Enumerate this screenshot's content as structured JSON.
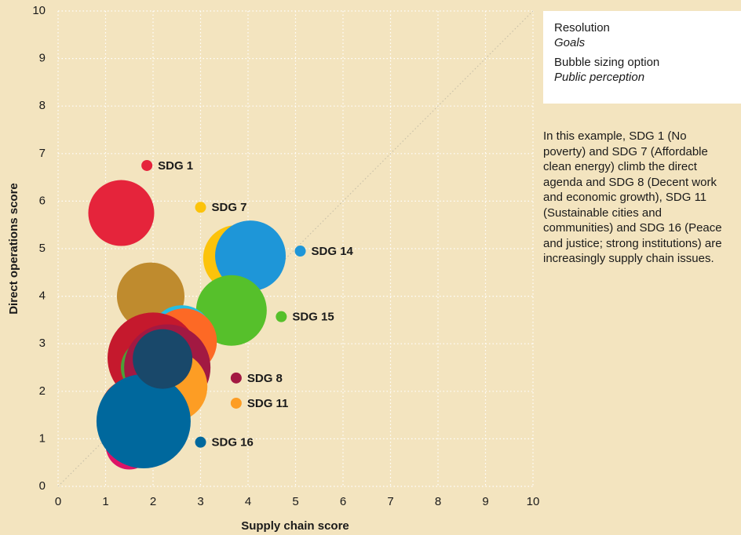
{
  "chart_data": {
    "type": "bubble",
    "xlabel": "Supply chain score",
    "ylabel": "Direct operations score",
    "xlim": [
      0,
      10
    ],
    "ylim": [
      0,
      10
    ],
    "xticks": [
      0,
      1,
      2,
      3,
      4,
      5,
      6,
      7,
      8,
      9,
      10
    ],
    "yticks": [
      0,
      1,
      2,
      3,
      4,
      5,
      6,
      7,
      8,
      9,
      10
    ],
    "grid": true,
    "diagonal": true,
    "bubbles": {
      "x": [
        1.33,
        3.75,
        4.05,
        3.65,
        1.95,
        2.6,
        2.65,
        2.0,
        1.9,
        2.3,
        2.4,
        1.55,
        1.5,
        1.8,
        2.2
      ],
      "y": [
        5.75,
        4.8,
        4.85,
        3.7,
        4.0,
        3.15,
        3.05,
        2.7,
        2.5,
        2.5,
        2.1,
        1.6,
        0.85,
        1.37,
        2.68
      ],
      "sizes": [
        42,
        42,
        45,
        45,
        43,
        40,
        42,
        58,
        35,
        55,
        45,
        40,
        30,
        60,
        38
      ],
      "colors": [
        "#e5243b",
        "#fcc30b",
        "#1e96d8",
        "#56c02b",
        "#bf8b2e",
        "#26bde2",
        "#fd6925",
        "#c5192d",
        "#4c9f38",
        "#a21942",
        "#fd9d24",
        "#ff3a21",
        "#dd1367",
        "#00689d",
        "#19486a"
      ]
    },
    "markers": {
      "x": [
        1.87,
        3.0,
        5.1,
        4.7,
        3.75,
        3.75,
        3.0
      ],
      "y": [
        6.75,
        5.87,
        4.95,
        3.57,
        2.28,
        1.75,
        0.93
      ],
      "labels": [
        "SDG 1",
        "SDG 7",
        "SDG 14",
        "SDG 15",
        "SDG 8",
        "SDG 11",
        "SDG 16"
      ],
      "colors": [
        "#e5243b",
        "#fcc30b",
        "#1e96d8",
        "#56c02b",
        "#a21942",
        "#fd9d24",
        "#00689d"
      ]
    }
  },
  "panel": {
    "items": [
      {
        "label": "Resolution",
        "value": "Goals"
      },
      {
        "label": "Bubble sizing option",
        "value": "Public perception"
      }
    ]
  },
  "note": "In this example, SDG 1 (No poverty) and SDG 7 (Affordable clean energy) climb the direct agenda and SDG 8 (Decent work and economic growth), SDG 11 (Sustainable cities and communities) and SDG 16 (Peace and justice; strong institutions) are increasingly supply chain issues."
}
